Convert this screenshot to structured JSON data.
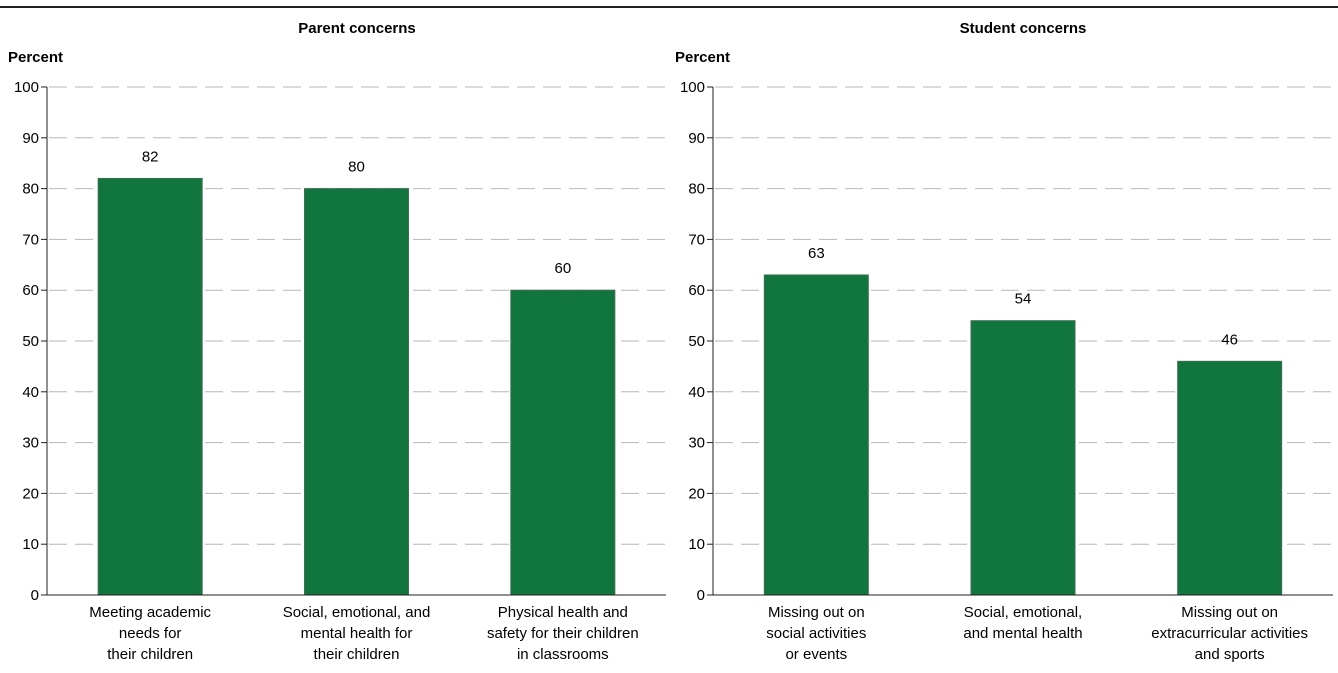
{
  "chart_data": [
    {
      "type": "bar",
      "title": "Parent concerns",
      "ylabel": "Percent",
      "xlabel": "",
      "ylim": [
        0,
        100
      ],
      "yticks": [
        0,
        10,
        20,
        30,
        40,
        50,
        60,
        70,
        80,
        90,
        100
      ],
      "grid": true,
      "color": "#11763d",
      "categories": [
        [
          "Meeting academic",
          "needs for",
          "their children"
        ],
        [
          "Social, emotional, and",
          "mental health for",
          "their children"
        ],
        [
          "Physical health and",
          "safety for their children",
          "in classrooms"
        ]
      ],
      "values": [
        82,
        80,
        60
      ]
    },
    {
      "type": "bar",
      "title": "Student concerns",
      "ylabel": "Percent",
      "xlabel": "",
      "ylim": [
        0,
        100
      ],
      "yticks": [
        0,
        10,
        20,
        30,
        40,
        50,
        60,
        70,
        80,
        90,
        100
      ],
      "grid": true,
      "color": "#11763d",
      "categories": [
        [
          "Missing out on",
          "social activities",
          "or events"
        ],
        [
          "Social, emotional,",
          "and mental health"
        ],
        [
          "Missing out on",
          "extracurricular activities",
          "and sports"
        ]
      ],
      "values": [
        63,
        54,
        46
      ]
    }
  ]
}
